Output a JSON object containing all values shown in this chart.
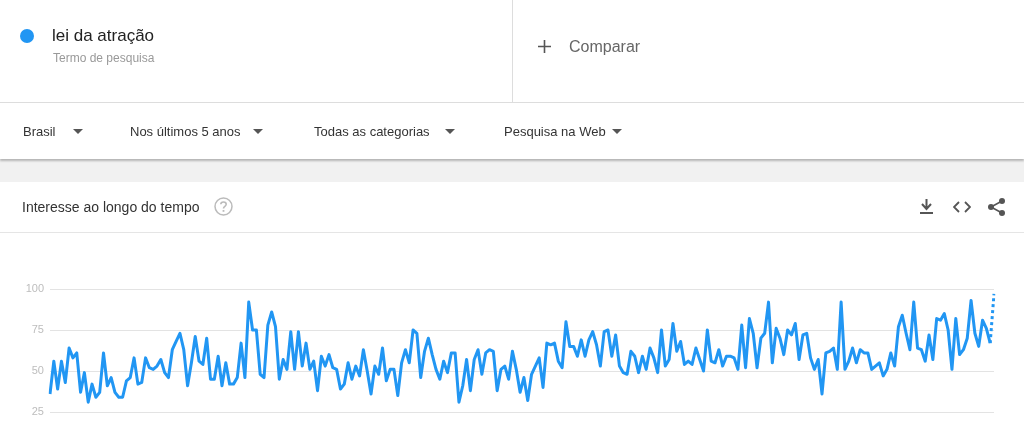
{
  "chart_data": {
    "type": "line",
    "title": "Interesse ao longo do tempo",
    "annotations": [
      "Termo de pesquisa",
      "Comparar",
      "Brasil",
      "Nos últimos 5 anos",
      "Todas as categorias",
      "Pesquisa na Web"
    ],
    "legend": "top left",
    "grid": "y",
    "tick_labels": "y",
    "marker": "none",
    "line_style": "solid",
    "ylim": [
      25,
      100
    ],
    "yticks": [
      25,
      50,
      75,
      100
    ],
    "categories": [
      null,
      null,
      null,
      null,
      null,
      null,
      null,
      null,
      null,
      null,
      null,
      null,
      null,
      null,
      null,
      null,
      null,
      null,
      null,
      null,
      null,
      null,
      null,
      null,
      null,
      null,
      null,
      null,
      null,
      null,
      null,
      null,
      null,
      null,
      null,
      null,
      null,
      null,
      null,
      null,
      null,
      null,
      null,
      null,
      null,
      null,
      null,
      null,
      null,
      null,
      null,
      null,
      null,
      null,
      null,
      null,
      null,
      null,
      null,
      null,
      null,
      null,
      null,
      null,
      null,
      null,
      null,
      null,
      null,
      null,
      null,
      null,
      null,
      null,
      null,
      null,
      null,
      null,
      null,
      null,
      null,
      null,
      null,
      null,
      null,
      null,
      null,
      null,
      null,
      null,
      null,
      null,
      null,
      null,
      null,
      null,
      null,
      null,
      null,
      null,
      null,
      null,
      null,
      null,
      null,
      null,
      null,
      null,
      null,
      null,
      null,
      null,
      null,
      null,
      null,
      null,
      null,
      null,
      null,
      null,
      null,
      null,
      null,
      null,
      null,
      null,
      null,
      null,
      null,
      null,
      null,
      null,
      null,
      null,
      null,
      null,
      null,
      null,
      null,
      null,
      null,
      null,
      null,
      null,
      null,
      null,
      null,
      null,
      null,
      null,
      null,
      null,
      null,
      null,
      null,
      null,
      null,
      null,
      null,
      null,
      null,
      null,
      null,
      null,
      null,
      null,
      null,
      null,
      null,
      null,
      null,
      null,
      null,
      null,
      null,
      null,
      null,
      null,
      null,
      null,
      null,
      null,
      null,
      null,
      null,
      null,
      null,
      null,
      null,
      null,
      null,
      null,
      null,
      null,
      null,
      null,
      null,
      null,
      null,
      null,
      null,
      null,
      null,
      null,
      null,
      null,
      null,
      null,
      null,
      null,
      null,
      null,
      null,
      null,
      null,
      null,
      null,
      null,
      null,
      null,
      null,
      null,
      null,
      null,
      null,
      null,
      null,
      null,
      null,
      null,
      null,
      null,
      null,
      null,
      null,
      null,
      null,
      null,
      null,
      null,
      null,
      null,
      null,
      null,
      null,
      null,
      null,
      null
    ],
    "series": [
      {
        "name": "lei da atração",
        "color": "#2196f3",
        "values": [
          36,
          56,
          39,
          56,
          43,
          64,
          58,
          61,
          37,
          49,
          31,
          42,
          34,
          37,
          61,
          41,
          46,
          37,
          34,
          34,
          44,
          46,
          58,
          42,
          43,
          58,
          52,
          51,
          53,
          57,
          49,
          46,
          63,
          68,
          73,
          63,
          41,
          55,
          71,
          56,
          54,
          70,
          45,
          45,
          59,
          41,
          55,
          42,
          42,
          46,
          67,
          46,
          92,
          75,
          75,
          48,
          46,
          78,
          86,
          77,
          45,
          57,
          51,
          74,
          51,
          74,
          53,
          67,
          51,
          56,
          38,
          59,
          53,
          60,
          52,
          51,
          39,
          42,
          55,
          45,
          53,
          47,
          63,
          50,
          36,
          53,
          48,
          64,
          44,
          51,
          51,
          35,
          55,
          63,
          55,
          75,
          73,
          46,
          62,
          70,
          60,
          51,
          45,
          56,
          49,
          61,
          61,
          31,
          41,
          57,
          38,
          57,
          63,
          48,
          61,
          63,
          62,
          38,
          51,
          53,
          45,
          62,
          51,
          37,
          46,
          32,
          48,
          53,
          58,
          40,
          67,
          66,
          67,
          56,
          52,
          80,
          65,
          65,
          59,
          69,
          59,
          69,
          74,
          66,
          53,
          74,
          75,
          59,
          72,
          53,
          49,
          48,
          62,
          59,
          49,
          59,
          51,
          64,
          58,
          49,
          75,
          53,
          57,
          79,
          62,
          68,
          54,
          56,
          54,
          64,
          57,
          50,
          75,
          56,
          55,
          63,
          53,
          59,
          59,
          58,
          51,
          78,
          52,
          82,
          73,
          52,
          70,
          73,
          92,
          55,
          76,
          70,
          60,
          75,
          72,
          79,
          57,
          72,
          73,
          58,
          51,
          57,
          36,
          61,
          62,
          64,
          51,
          92,
          51,
          56,
          64,
          55,
          63,
          61,
          61,
          51,
          53,
          55,
          47,
          51,
          61,
          53,
          77,
          84,
          73,
          63,
          92,
          64,
          63,
          56,
          72,
          57,
          82,
          81,
          85,
          75,
          51,
          82,
          60,
          63,
          70,
          93,
          73,
          65,
          81,
          76,
          67,
          null
        ]
      },
      {
        "color": "#2196f3",
        "line_style": "dotted",
        "values": [
          null,
          null,
          null,
          null,
          null,
          null,
          null,
          null,
          null,
          null,
          null,
          null,
          null,
          null,
          null,
          null,
          null,
          null,
          null,
          null,
          null,
          null,
          null,
          null,
          null,
          null,
          null,
          null,
          null,
          null,
          null,
          null,
          null,
          null,
          null,
          null,
          null,
          null,
          null,
          null,
          null,
          null,
          null,
          null,
          null,
          null,
          null,
          null,
          null,
          null,
          null,
          null,
          null,
          null,
          null,
          null,
          null,
          null,
          null,
          null,
          null,
          null,
          null,
          null,
          null,
          null,
          null,
          null,
          null,
          null,
          null,
          null,
          null,
          null,
          null,
          null,
          null,
          null,
          null,
          null,
          null,
          null,
          null,
          null,
          null,
          null,
          null,
          null,
          null,
          null,
          null,
          null,
          null,
          null,
          null,
          null,
          null,
          null,
          null,
          null,
          null,
          null,
          null,
          null,
          null,
          null,
          null,
          null,
          null,
          null,
          null,
          null,
          null,
          null,
          null,
          null,
          null,
          null,
          null,
          null,
          null,
          null,
          null,
          null,
          null,
          null,
          null,
          null,
          null,
          null,
          null,
          null,
          null,
          null,
          null,
          null,
          null,
          null,
          null,
          null,
          null,
          null,
          null,
          null,
          null,
          null,
          null,
          null,
          null,
          null,
          null,
          null,
          null,
          null,
          null,
          null,
          null,
          null,
          null,
          null,
          null,
          null,
          null,
          null,
          null,
          null,
          null,
          null,
          null,
          null,
          null,
          null,
          null,
          null,
          null,
          null,
          null,
          null,
          null,
          null,
          null,
          null,
          null,
          null,
          null,
          null,
          null,
          null,
          null,
          null,
          null,
          null,
          null,
          null,
          null,
          null,
          null,
          null,
          null,
          null,
          null,
          null,
          null,
          null,
          null,
          null,
          null,
          null,
          null,
          null,
          null,
          null,
          null,
          null,
          null,
          null,
          null,
          null,
          null,
          null,
          null,
          null,
          null,
          null,
          null,
          null,
          null,
          null,
          null,
          null,
          null,
          null,
          null,
          null,
          null,
          null,
          null,
          null,
          null,
          null,
          null,
          null,
          null,
          null,
          null,
          null,
          67,
          97
        ]
      }
    ]
  }
}
